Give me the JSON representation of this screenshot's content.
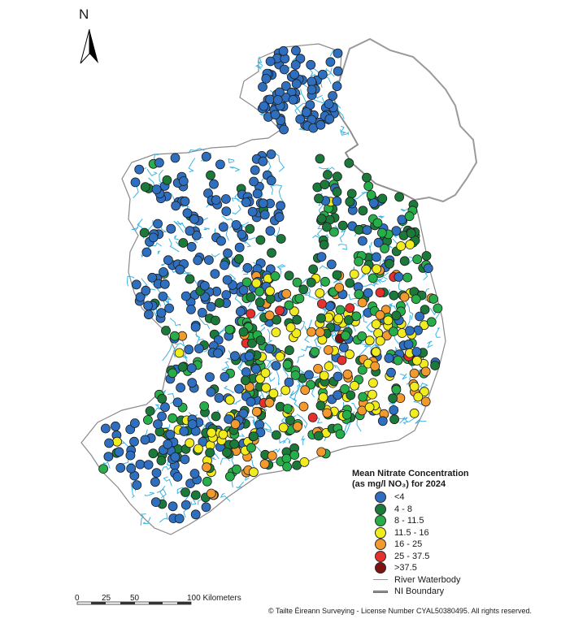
{
  "north_arrow": {
    "label": "N",
    "icon": "north-arrow-icon"
  },
  "legend": {
    "title_line1": "Mean Nitrate Concentration",
    "title_line2": "(as mg/l NO₃) for 2024",
    "classes": [
      {
        "label": "<4",
        "color": "#2f6fbf"
      },
      {
        "label": "4 - 8",
        "color": "#1b7a3a"
      },
      {
        "label": "8 - 11.5",
        "color": "#27ae4a"
      },
      {
        "label": "11.5 - 16",
        "color": "#f1ec1e"
      },
      {
        "label": "16 - 25",
        "color": "#f39a2e"
      },
      {
        "label": "25 - 37.5",
        "color": "#e5312e"
      },
      {
        "label": ">37.5",
        "color": "#7d1212"
      }
    ],
    "river_label": "River Waterbody",
    "river_color": "#3fb4e0",
    "ni_label": "NI Boundary"
  },
  "scale_bar": {
    "ticks": [
      "0",
      "25",
      "50",
      "100 Kilometers"
    ]
  },
  "copyright": "© Tailte Éireann Surveying - License Number CYAL50380495. All rights reserved."
}
